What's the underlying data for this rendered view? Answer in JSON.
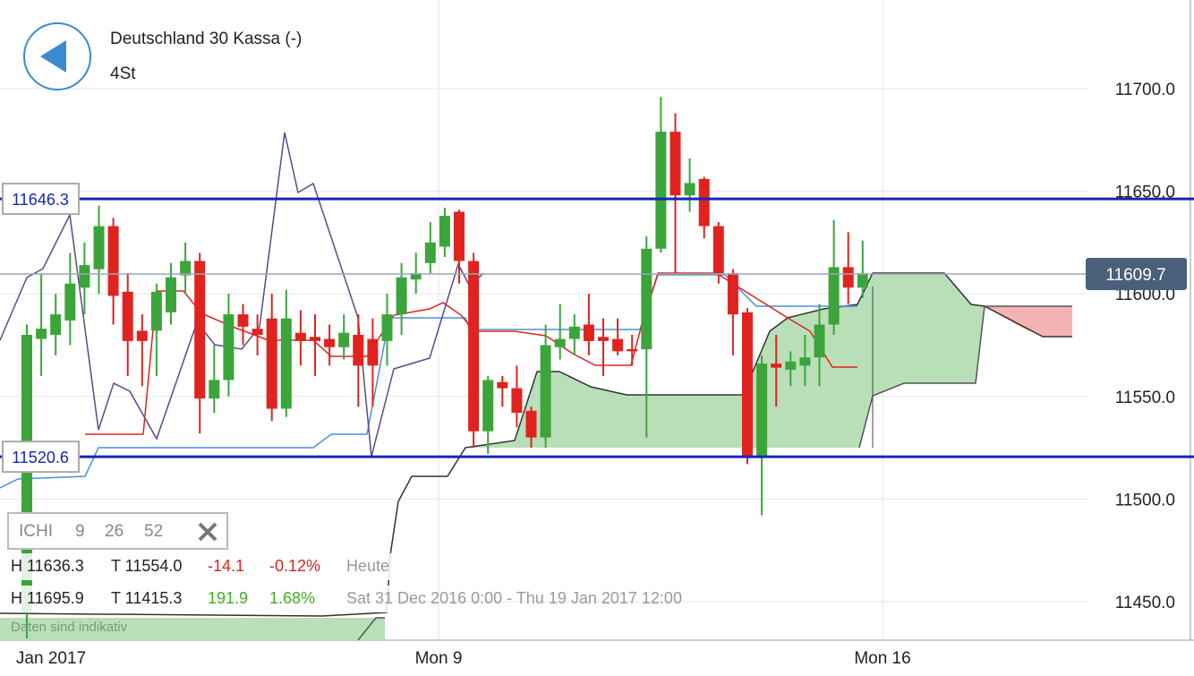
{
  "header": {
    "title": "Deutschland 30 Kassa (-)",
    "interval": "4St"
  },
  "chart_data": {
    "type": "candlestick",
    "open": [
      11445,
      11578,
      11580,
      11587,
      11603,
      11612,
      11633,
      11601,
      11582,
      11582,
      11591,
      11609,
      11616,
      11549,
      11558,
      11590,
      11583,
      11588,
      11544,
      11581,
      11579,
      11578,
      11574,
      11580,
      11578,
      11577,
      11590,
      11607,
      11615,
      11623,
      11640,
      11616,
      11533,
      11557,
      11554,
      11543,
      11530,
      11574,
      11578,
      11585,
      11579,
      11578,
      11573,
      11573,
      11622,
      11679,
      11648,
      11656,
      11633,
      11610,
      11591,
      11520,
      11566,
      11563,
      11565,
      11569,
      11585,
      11613,
      11603
    ],
    "high": [
      11585,
      11610,
      11600,
      11620,
      11625,
      11643,
      11637,
      11610,
      11590,
      11605,
      11615,
      11625,
      11620,
      11575,
      11600,
      11595,
      11590,
      11600,
      11602,
      11592,
      11590,
      11585,
      11590,
      11590,
      11588,
      11600,
      11615,
      11620,
      11635,
      11642,
      11641,
      11620,
      11560,
      11560,
      11565,
      11545,
      11585,
      11595,
      11590,
      11600,
      11588,
      11588,
      11580,
      11628,
      11696,
      11688,
      11666,
      11657,
      11635,
      11612,
      11593,
      11570,
      11580,
      11572,
      11580,
      11595,
      11636,
      11630,
      11626
    ],
    "low": [
      11432,
      11560,
      11570,
      11575,
      11590,
      11600,
      11585,
      11560,
      11555,
      11560,
      11585,
      11600,
      11532,
      11542,
      11550,
      11575,
      11570,
      11538,
      11540,
      11565,
      11560,
      11565,
      11568,
      11545,
      11545,
      11565,
      11580,
      11600,
      11610,
      11618,
      11605,
      11525,
      11522,
      11545,
      11535,
      11525,
      11525,
      11568,
      11570,
      11570,
      11560,
      11570,
      11565,
      11530,
      11620,
      11610,
      11640,
      11627,
      11605,
      11570,
      11517,
      11492,
      11545,
      11555,
      11555,
      11555,
      11580,
      11595,
      11598
    ],
    "close": [
      11580,
      11583,
      11590,
      11605,
      11614,
      11633,
      11599,
      11577,
      11577,
      11601,
      11608,
      11616,
      11549,
      11558,
      11590,
      11584,
      11580,
      11544,
      11588,
      11577,
      11577,
      11574,
      11581,
      11565,
      11565,
      11590,
      11608,
      11610,
      11625,
      11638,
      11616,
      11533,
      11558,
      11554,
      11542,
      11530,
      11575,
      11578,
      11584,
      11577,
      11577,
      11572,
      11572,
      11622,
      11679,
      11648,
      11654,
      11633,
      11610,
      11590,
      11520,
      11566,
      11564,
      11567,
      11569,
      11585,
      11613,
      11603,
      11610
    ],
    "up_color": "#3ba53b",
    "down_color": "#e0231f",
    "ylim": [
      11431.2,
      11743.2
    ],
    "yticks": [
      {
        "value": 11450,
        "label": "11450.0"
      },
      {
        "value": 11500,
        "label": "11500.0"
      },
      {
        "value": 11550,
        "label": "11550.0"
      },
      {
        "value": 11600,
        "label": "11600.0"
      },
      {
        "value": 11650,
        "label": "11650.0"
      },
      {
        "value": 11700,
        "label": "11700.0"
      }
    ],
    "x_labels": [
      "Jan 2017",
      "Mon 9",
      "Mon 16"
    ],
    "levels": [
      11646.3,
      11520.6
    ],
    "level_color": "#1428b4",
    "last_price": 11609.7
  },
  "indicator": {
    "name": "ICHI",
    "params": [
      "9",
      "26",
      "52"
    ]
  },
  "stats": [
    [
      "H 11636.3",
      "T 11554.0",
      "-14.1",
      "-0.12%",
      "Heute"
    ],
    [
      "H 11695.9",
      "T 11415.3",
      "191.9",
      "1.68%",
      "Sat 31 Dec 2016 0:00 - Thu 19 Jan 2017 12:00"
    ]
  ],
  "footer_note": "Daten sind indikativ"
}
